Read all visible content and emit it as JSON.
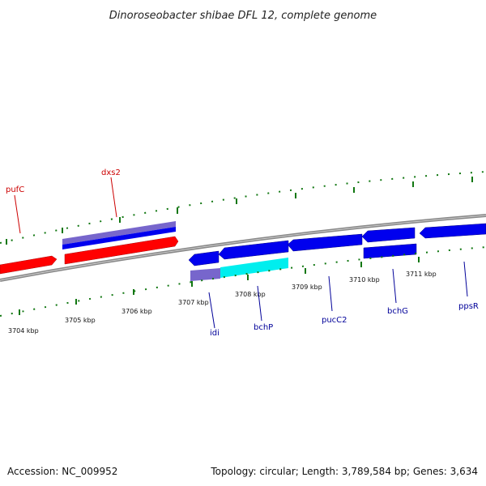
{
  "title": "Dinoroseobacter shibae DFL 12, complete genome",
  "footer": {
    "accession": "Accession: NC_009952",
    "summary": "Topology: circular; Length: 3,789,584 bp; Genes: 3,634"
  },
  "colors": {
    "forward_gene": "#ff0000",
    "reverse_gene": "#0000ee",
    "gene_highlight_purple": "#7766cc",
    "gene_highlight_cyan": "#00eeee",
    "tick_mark": "#117711",
    "backbone": "#888888",
    "label_forward": "#cc0000",
    "label_reverse": "#000099"
  },
  "kbp_labels": [
    "3704 kbp",
    "3705 kbp",
    "3706 kbp",
    "3707 kbp",
    "3708 kbp",
    "3709 kbp",
    "3710 kbp",
    "3711 kbp"
  ],
  "genes": {
    "forward_labels": [
      "pufC",
      "dxs2"
    ],
    "reverse_labels": [
      "idi",
      "bchP",
      "pucC2",
      "bchG",
      "ppsR"
    ]
  }
}
